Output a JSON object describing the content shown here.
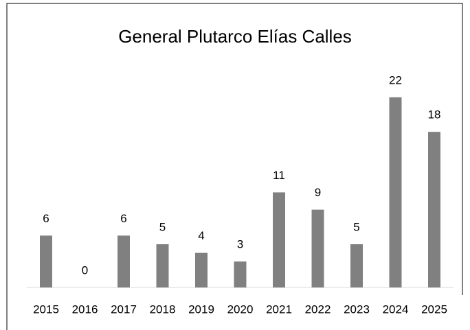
{
  "chart_data": {
    "type": "bar",
    "title": "General Plutarco Elías Calles",
    "categories": [
      "2015",
      "2016",
      "2017",
      "2018",
      "2019",
      "2020",
      "2021",
      "2022",
      "2023",
      "2024",
      "2025"
    ],
    "values": [
      6,
      0,
      6,
      5,
      4,
      3,
      11,
      9,
      5,
      22,
      18
    ],
    "color": "#808080",
    "ylim": [
      0,
      25
    ]
  }
}
